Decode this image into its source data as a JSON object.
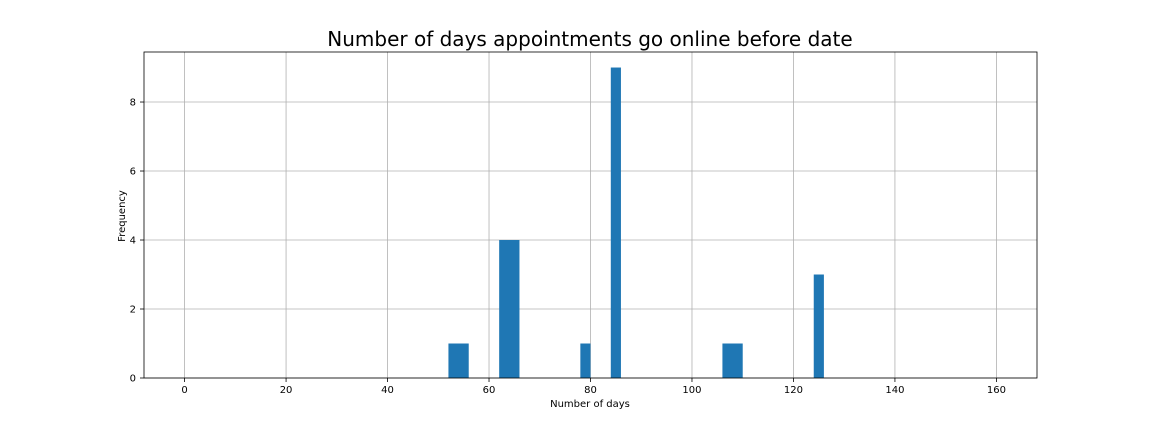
{
  "chart_data": {
    "type": "bar",
    "title": "Number of days appointments go online before date",
    "xlabel": "Number of days",
    "ylabel": "Frequency",
    "xlim": [
      -8,
      168
    ],
    "ylim": [
      0,
      9.45
    ],
    "xticks": [
      0,
      20,
      40,
      60,
      80,
      100,
      120,
      140,
      160
    ],
    "yticks": [
      0,
      2,
      4,
      6,
      8
    ],
    "grid": true,
    "bar_color": "#1f77b4",
    "bars": [
      {
        "x0": 52,
        "x1": 56,
        "value": 1
      },
      {
        "x0": 62,
        "x1": 66,
        "value": 4
      },
      {
        "x0": 78,
        "x1": 80,
        "value": 1
      },
      {
        "x0": 84,
        "x1": 86,
        "value": 9
      },
      {
        "x0": 106,
        "x1": 110,
        "value": 1
      },
      {
        "x0": 124,
        "x1": 126,
        "value": 3
      }
    ]
  }
}
